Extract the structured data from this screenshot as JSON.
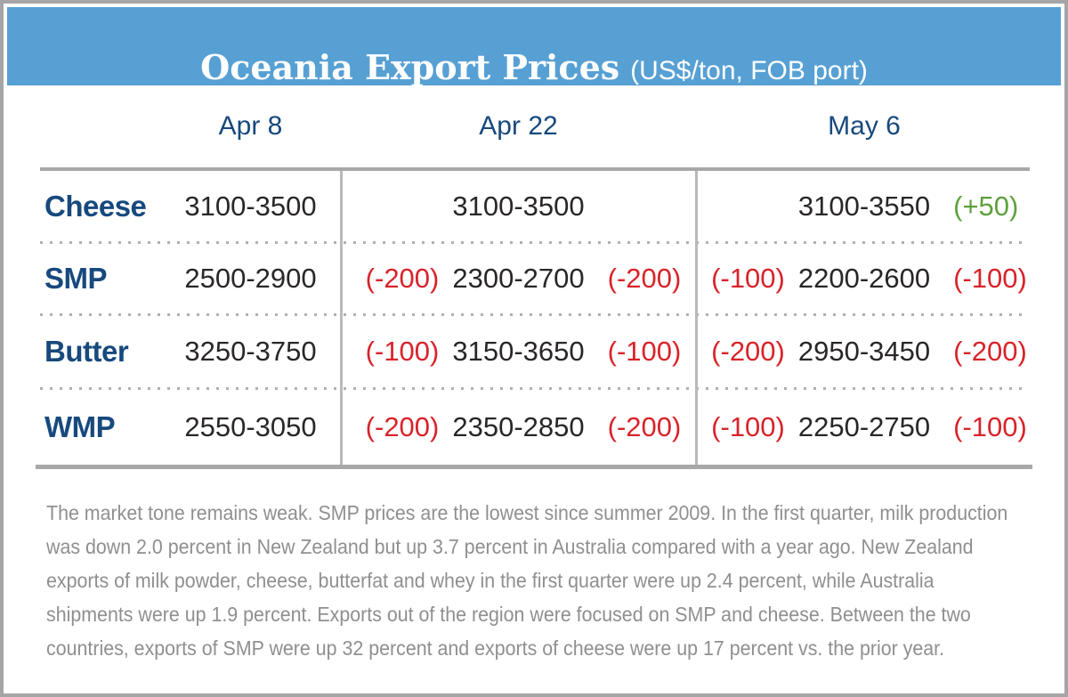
{
  "header": {
    "title": "Oceania Export Prices",
    "subtitle": "(US$/ton, FOB port)"
  },
  "table": {
    "columns": [
      "Apr 8",
      "Apr 22",
      "May 6"
    ],
    "rows": [
      {
        "label": "Cheese",
        "cells": [
          {
            "pre": "",
            "value": "3100-3500",
            "post": "",
            "tone": ""
          },
          {
            "pre": "",
            "value": "3100-3500",
            "post": "",
            "tone": ""
          },
          {
            "pre": "",
            "value": "3100-3550",
            "post": "(+50)",
            "tone": "pos"
          }
        ]
      },
      {
        "label": "SMP",
        "cells": [
          {
            "pre": "",
            "value": "2500-2900",
            "post": "",
            "tone": ""
          },
          {
            "pre": "(-200)",
            "value": "2300-2700",
            "post": "(-200)",
            "tone": "neg"
          },
          {
            "pre": "(-100)",
            "value": "2200-2600",
            "post": "(-100)",
            "tone": "neg"
          }
        ]
      },
      {
        "label": "Butter",
        "cells": [
          {
            "pre": "",
            "value": "3250-3750",
            "post": "",
            "tone": ""
          },
          {
            "pre": "(-100)",
            "value": "3150-3650",
            "post": "(-100)",
            "tone": "neg"
          },
          {
            "pre": "(-200)",
            "value": "2950-3450",
            "post": "(-200)",
            "tone": "neg"
          }
        ]
      },
      {
        "label": "WMP",
        "cells": [
          {
            "pre": "",
            "value": "2550-3050",
            "post": "",
            "tone": ""
          },
          {
            "pre": "(-200)",
            "value": "2350-2850",
            "post": "(-200)",
            "tone": "neg"
          },
          {
            "pre": "(-100)",
            "value": "2250-2750",
            "post": "(-100)",
            "tone": "neg"
          }
        ]
      }
    ]
  },
  "note": {
    "lines": [
      "The market tone remains weak. SMP prices are the lowest since summer 2009. In the first quarter, milk production",
      "was down 2.0 percent in New Zealand but up 3.7 percent in Australia compared with a year ago. New Zealand",
      "exports of milk powder, cheese, butterfat and whey in the first quarter were up 2.4 percent, while Australia",
      "shipments were up 1.9 percent. Exports out of the region were focused on SMP and cheese. Between the two",
      "countries, exports of SMP were up 32 percent and exports of cheese were up 17 percent vs. the prior year."
    ]
  },
  "colors": {
    "band_blue": "#57a0d4",
    "navy_text": "#17497d",
    "value_text": "#2a2627",
    "negative_red": "#d8232a",
    "positive_green": "#5ea13c",
    "rule_gray": "#a8a8a8",
    "note_gray": "#8f8f91"
  }
}
